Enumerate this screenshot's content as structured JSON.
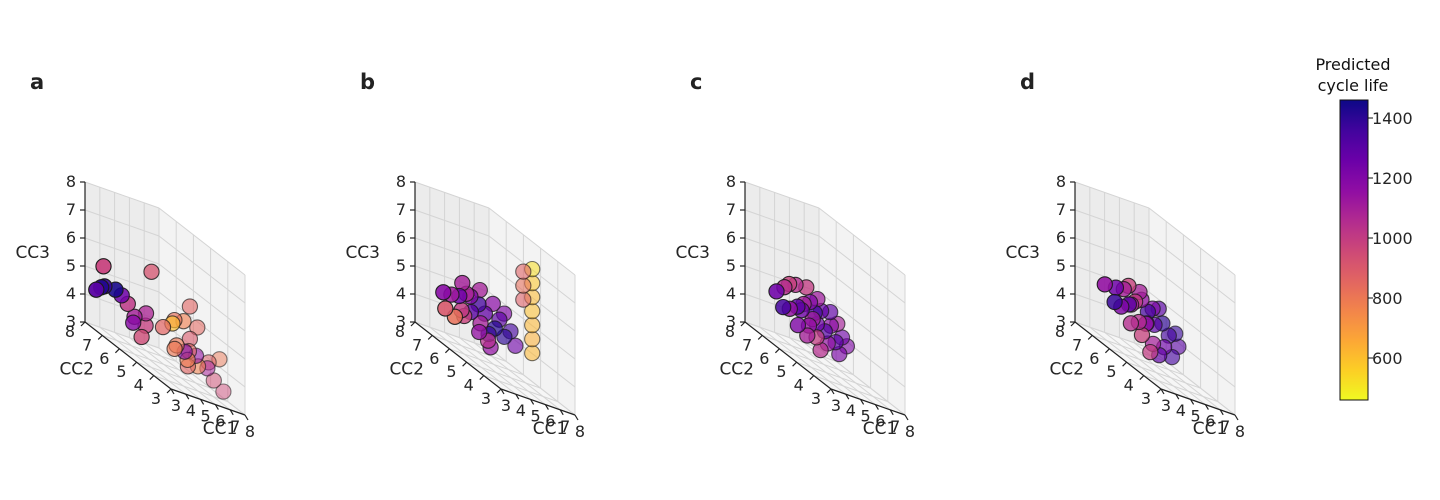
{
  "colormap": "plasma",
  "colors": {
    "pane_left": "#ececec",
    "pane_right": "#f3f3f3",
    "pane_floor": "#f6f6f6",
    "grid": "#d4d4d4",
    "edge": "#1a1a1a"
  },
  "chart_data": [
    {
      "type": "scatter3d",
      "panel": "a",
      "xlabel": "CC1",
      "ylabel": "CC2",
      "zlabel": "CC3",
      "xlim": [
        3,
        8
      ],
      "ylim": [
        3,
        8
      ],
      "zlim": [
        3,
        8
      ],
      "ticks": {
        "x": [
          "3",
          "4",
          "5",
          "6",
          "7",
          "8"
        ],
        "y": [
          "3",
          "4",
          "5",
          "6",
          "7",
          "8"
        ],
        "z": [
          "3",
          "4",
          "5",
          "6",
          "7",
          "8"
        ]
      },
      "grid": true,
      "points": [
        {
          "x": 3.4,
          "y": 7.4,
          "z": 4.6,
          "c": 1420
        },
        {
          "x": 3.5,
          "y": 7.3,
          "z": 4.7,
          "c": 1380
        },
        {
          "x": 3.9,
          "y": 7.0,
          "z": 4.8,
          "c": 1440
        },
        {
          "x": 3.3,
          "y": 7.6,
          "z": 4.4,
          "c": 1300
        },
        {
          "x": 4.2,
          "y": 6.9,
          "z": 4.7,
          "c": 1250
        },
        {
          "x": 3.9,
          "y": 7.7,
          "z": 5.3,
          "c": 980
        },
        {
          "x": 4.5,
          "y": 6.8,
          "z": 4.5,
          "c": 1020
        },
        {
          "x": 4.4,
          "y": 6.4,
          "z": 4.0,
          "c": 1180
        },
        {
          "x": 4.6,
          "y": 6.5,
          "z": 4.2,
          "c": 1100
        },
        {
          "x": 4.5,
          "y": 6.0,
          "z": 3.7,
          "c": 950
        },
        {
          "x": 5.0,
          "y": 6.2,
          "z": 4.1,
          "c": 990
        },
        {
          "x": 4.8,
          "y": 6.0,
          "z": 4.6,
          "c": 1080
        },
        {
          "x": 5.4,
          "y": 6.2,
          "z": 6.1,
          "c": 920
        },
        {
          "x": 5.6,
          "y": 5.7,
          "z": 4.4,
          "c": 860
        },
        {
          "x": 6.0,
          "y": 5.5,
          "z": 4.7,
          "c": 600
        },
        {
          "x": 5.9,
          "y": 5.3,
          "z": 4.9,
          "c": 820
        },
        {
          "x": 6.4,
          "y": 5.2,
          "z": 5.0,
          "c": 780
        },
        {
          "x": 6.6,
          "y": 5.0,
          "z": 4.5,
          "c": 900
        },
        {
          "x": 6.3,
          "y": 4.8,
          "z": 4.1,
          "c": 850
        },
        {
          "x": 6.0,
          "y": 4.6,
          "z": 3.6,
          "c": 860
        },
        {
          "x": 5.8,
          "y": 5.2,
          "z": 3.9,
          "c": 800
        },
        {
          "x": 6.6,
          "y": 5.3,
          "z": 3.9,
          "c": 1200
        },
        {
          "x": 6.9,
          "y": 4.9,
          "z": 4.0,
          "c": 1150
        },
        {
          "x": 6.8,
          "y": 4.7,
          "z": 3.7,
          "c": 770
        },
        {
          "x": 7.2,
          "y": 4.5,
          "z": 3.8,
          "c": 1090
        },
        {
          "x": 7.4,
          "y": 4.6,
          "z": 4.0,
          "c": 880
        },
        {
          "x": 7.4,
          "y": 4.3,
          "z": 3.5,
          "c": 940
        },
        {
          "x": 7.9,
          "y": 4.4,
          "z": 4.3,
          "c": 800
        },
        {
          "x": 7.7,
          "y": 4.0,
          "z": 3.3,
          "c": 960
        },
        {
          "x": 7.1,
          "y": 5.0,
          "z": 5.0,
          "c": 850
        },
        {
          "x": 7.3,
          "y": 5.6,
          "z": 5.5,
          "c": 860
        },
        {
          "x": 6.1,
          "y": 4.7,
          "z": 3.8,
          "c": 780
        },
        {
          "x": 5.7,
          "y": 5.0,
          "z": 4.1,
          "c": 800
        }
      ]
    },
    {
      "type": "scatter3d",
      "panel": "b",
      "xlabel": "CC1",
      "ylabel": "CC2",
      "zlabel": "CC3",
      "xlim": [
        3,
        8
      ],
      "ylim": [
        3,
        8
      ],
      "zlim": [
        3,
        8
      ],
      "ticks": {
        "x": [
          "3",
          "4",
          "5",
          "6",
          "7",
          "8"
        ],
        "y": [
          "3",
          "4",
          "5",
          "6",
          "7",
          "8"
        ],
        "z": [
          "3",
          "4",
          "5",
          "6",
          "7",
          "8"
        ]
      },
      "grid": true,
      "points": [
        {
          "x": 4.1,
          "y": 7.3,
          "z": 4.6,
          "c": 1180
        },
        {
          "x": 4.3,
          "y": 7.0,
          "z": 4.7,
          "c": 1120
        },
        {
          "x": 4.6,
          "y": 6.8,
          "z": 4.8,
          "c": 1250
        },
        {
          "x": 4.4,
          "y": 6.5,
          "z": 4.4,
          "c": 1000
        },
        {
          "x": 4.8,
          "y": 6.3,
          "z": 4.5,
          "c": 1300
        },
        {
          "x": 5.0,
          "y": 6.5,
          "z": 5.0,
          "c": 1200
        },
        {
          "x": 5.2,
          "y": 6.2,
          "z": 4.9,
          "c": 1350
        },
        {
          "x": 5.4,
          "y": 6.0,
          "z": 4.7,
          "c": 1280
        },
        {
          "x": 5.1,
          "y": 6.0,
          "z": 4.3,
          "c": 1100
        },
        {
          "x": 4.9,
          "y": 5.9,
          "z": 4.0,
          "c": 1150
        },
        {
          "x": 5.3,
          "y": 5.7,
          "z": 4.1,
          "c": 1380
        },
        {
          "x": 5.6,
          "y": 5.6,
          "z": 4.4,
          "c": 1420
        },
        {
          "x": 5.8,
          "y": 5.5,
          "z": 4.8,
          "c": 1300
        },
        {
          "x": 6.0,
          "y": 5.4,
          "z": 5.1,
          "c": 1200
        },
        {
          "x": 5.9,
          "y": 5.3,
          "z": 4.3,
          "c": 1400
        },
        {
          "x": 4.0,
          "y": 7.1,
          "z": 4.1,
          "c": 900
        },
        {
          "x": 4.3,
          "y": 6.8,
          "z": 4.0,
          "c": 820
        },
        {
          "x": 4.7,
          "y": 6.6,
          "z": 4.2,
          "c": 980
        },
        {
          "x": 5.5,
          "y": 5.9,
          "z": 3.8,
          "c": 1050
        },
        {
          "x": 5.2,
          "y": 5.5,
          "z": 3.7,
          "c": 1150
        },
        {
          "x": 4.5,
          "y": 6.3,
          "z": 5.1,
          "c": 1080
        },
        {
          "x": 4.8,
          "y": 6.8,
          "z": 5.3,
          "c": 1100
        },
        {
          "x": 5.7,
          "y": 5.8,
          "z": 5.2,
          "c": 1180
        },
        {
          "x": 6.2,
          "y": 5.2,
          "z": 4.6,
          "c": 1350
        },
        {
          "x": 5.4,
          "y": 6.3,
          "z": 5.4,
          "c": 1100
        },
        {
          "x": 6.3,
          "y": 5.0,
          "z": 4.2,
          "c": 1250
        },
        {
          "x": 6.6,
          "y": 4.8,
          "z": 6.0,
          "c": 880
        },
        {
          "x": 6.6,
          "y": 4.8,
          "z": 6.5,
          "c": 830
        },
        {
          "x": 6.6,
          "y": 4.8,
          "z": 7.0,
          "c": 870
        },
        {
          "x": 7.2,
          "y": 4.8,
          "z": 4.2,
          "c": 620
        },
        {
          "x": 7.2,
          "y": 4.8,
          "z": 4.7,
          "c": 640
        },
        {
          "x": 7.2,
          "y": 4.8,
          "z": 5.2,
          "c": 620
        },
        {
          "x": 7.2,
          "y": 4.8,
          "z": 5.7,
          "c": 600
        },
        {
          "x": 7.2,
          "y": 4.8,
          "z": 6.2,
          "c": 610
        },
        {
          "x": 7.2,
          "y": 4.8,
          "z": 6.7,
          "c": 580
        },
        {
          "x": 7.2,
          "y": 4.8,
          "z": 7.2,
          "c": 520
        }
      ]
    },
    {
      "type": "scatter3d",
      "panel": "c",
      "xlabel": "CC1",
      "ylabel": "CC2",
      "zlabel": "CC3",
      "xlim": [
        3,
        8
      ],
      "ylim": [
        3,
        8
      ],
      "zlim": [
        3,
        8
      ],
      "ticks": {
        "x": [
          "3",
          "4",
          "5",
          "6",
          "7",
          "8"
        ],
        "y": [
          "3",
          "4",
          "5",
          "6",
          "7",
          "8"
        ],
        "z": [
          "3",
          "4",
          "5",
          "6",
          "7",
          "8"
        ]
      },
      "grid": true,
      "points": [
        {
          "x": 4.2,
          "y": 7.2,
          "z": 4.7,
          "c": 1250
        },
        {
          "x": 4.5,
          "y": 7.0,
          "z": 5.0,
          "c": 1050
        },
        {
          "x": 4.7,
          "y": 6.9,
          "z": 5.2,
          "c": 980
        },
        {
          "x": 4.4,
          "y": 6.6,
          "z": 4.4,
          "c": 1150
        },
        {
          "x": 4.8,
          "y": 6.5,
          "z": 4.6,
          "c": 1300
        },
        {
          "x": 5.1,
          "y": 6.4,
          "z": 4.8,
          "c": 1100
        },
        {
          "x": 5.3,
          "y": 6.2,
          "z": 5.0,
          "c": 1200
        },
        {
          "x": 5.5,
          "y": 6.1,
          "z": 4.7,
          "c": 1350
        },
        {
          "x": 5.7,
          "y": 5.9,
          "z": 4.9,
          "c": 1280
        },
        {
          "x": 5.0,
          "y": 6.0,
          "z": 4.2,
          "c": 1150
        },
        {
          "x": 5.3,
          "y": 5.8,
          "z": 4.4,
          "c": 1250
        },
        {
          "x": 5.6,
          "y": 5.6,
          "z": 4.3,
          "c": 1320
        },
        {
          "x": 5.9,
          "y": 5.5,
          "z": 4.6,
          "c": 1180
        },
        {
          "x": 6.1,
          "y": 5.3,
          "z": 4.8,
          "c": 1100
        },
        {
          "x": 6.3,
          "y": 5.2,
          "z": 4.4,
          "c": 1250
        },
        {
          "x": 4.6,
          "y": 6.3,
          "z": 4.0,
          "c": 1200
        },
        {
          "x": 5.0,
          "y": 6.1,
          "z": 3.8,
          "c": 1100
        },
        {
          "x": 5.4,
          "y": 5.9,
          "z": 3.9,
          "c": 1000
        },
        {
          "x": 5.8,
          "y": 5.6,
          "z": 3.9,
          "c": 1150
        },
        {
          "x": 6.1,
          "y": 5.4,
          "z": 4.1,
          "c": 1300
        },
        {
          "x": 4.9,
          "y": 6.7,
          "z": 5.3,
          "c": 1050
        },
        {
          "x": 5.4,
          "y": 6.5,
          "z": 5.4,
          "c": 1000
        },
        {
          "x": 5.8,
          "y": 6.2,
          "z": 5.2,
          "c": 1120
        },
        {
          "x": 6.2,
          "y": 5.8,
          "z": 5.0,
          "c": 1280
        },
        {
          "x": 4.3,
          "y": 6.9,
          "z": 4.3,
          "c": 1350
        },
        {
          "x": 5.2,
          "y": 6.6,
          "z": 4.5,
          "c": 1250
        },
        {
          "x": 6.4,
          "y": 5.0,
          "z": 4.2,
          "c": 1200
        },
        {
          "x": 5.6,
          "y": 6.3,
          "z": 4.4,
          "c": 1120
        },
        {
          "x": 5.2,
          "y": 5.5,
          "z": 3.6,
          "c": 1050
        },
        {
          "x": 6.0,
          "y": 5.1,
          "z": 3.8,
          "c": 1220
        }
      ]
    },
    {
      "type": "scatter3d",
      "panel": "d",
      "xlabel": "CC1",
      "ylabel": "CC2",
      "zlabel": "CC3",
      "xlim": [
        3,
        8
      ],
      "ylim": [
        3,
        8
      ],
      "zlim": [
        3,
        8
      ],
      "ticks": {
        "x": [
          "3",
          "4",
          "5",
          "6",
          "7",
          "8"
        ],
        "y": [
          "3",
          "4",
          "5",
          "6",
          "7",
          "8"
        ],
        "z": [
          "3",
          "4",
          "5",
          "6",
          "7",
          "8"
        ]
      },
      "grid": true,
      "points": [
        {
          "x": 4.2,
          "y": 7.3,
          "z": 4.9,
          "c": 1150
        },
        {
          "x": 4.6,
          "y": 7.0,
          "z": 5.0,
          "c": 1250
        },
        {
          "x": 4.9,
          "y": 6.8,
          "z": 5.1,
          "c": 1100
        },
        {
          "x": 4.5,
          "y": 6.6,
          "z": 4.5,
          "c": 1200
        },
        {
          "x": 4.9,
          "y": 6.5,
          "z": 4.7,
          "c": 1300
        },
        {
          "x": 5.2,
          "y": 6.4,
          "z": 4.9,
          "c": 1000
        },
        {
          "x": 5.4,
          "y": 6.2,
          "z": 5.1,
          "c": 1150
        },
        {
          "x": 5.6,
          "y": 6.0,
          "z": 4.8,
          "c": 1350
        },
        {
          "x": 5.8,
          "y": 5.9,
          "z": 5.0,
          "c": 1200
        },
        {
          "x": 5.1,
          "y": 6.1,
          "z": 4.3,
          "c": 1050
        },
        {
          "x": 5.4,
          "y": 5.9,
          "z": 4.4,
          "c": 1200
        },
        {
          "x": 5.7,
          "y": 5.7,
          "z": 4.5,
          "c": 1300
        },
        {
          "x": 6.0,
          "y": 5.5,
          "z": 4.7,
          "c": 1400
        },
        {
          "x": 6.2,
          "y": 5.3,
          "z": 4.4,
          "c": 1350
        },
        {
          "x": 6.4,
          "y": 5.1,
          "z": 4.6,
          "c": 1380
        },
        {
          "x": 4.8,
          "y": 6.3,
          "z": 4.1,
          "c": 1050
        },
        {
          "x": 5.2,
          "y": 6.0,
          "z": 3.9,
          "c": 980
        },
        {
          "x": 5.6,
          "y": 5.7,
          "z": 3.8,
          "c": 1100
        },
        {
          "x": 6.0,
          "y": 5.4,
          "z": 3.9,
          "c": 1250
        },
        {
          "x": 6.3,
          "y": 5.2,
          "z": 3.7,
          "c": 1350
        },
        {
          "x": 5.1,
          "y": 6.7,
          "z": 5.3,
          "c": 980
        },
        {
          "x": 5.5,
          "y": 6.4,
          "z": 5.3,
          "c": 1100
        },
        {
          "x": 6.1,
          "y": 5.8,
          "z": 5.1,
          "c": 1300
        },
        {
          "x": 4.4,
          "y": 6.9,
          "z": 4.5,
          "c": 1380
        },
        {
          "x": 5.7,
          "y": 6.2,
          "z": 4.3,
          "c": 1150
        },
        {
          "x": 5.3,
          "y": 5.6,
          "z": 3.5,
          "c": 1000
        },
        {
          "x": 6.5,
          "y": 5.0,
          "z": 4.2,
          "c": 1300
        },
        {
          "x": 5.9,
          "y": 5.6,
          "z": 3.5,
          "c": 1280
        },
        {
          "x": 4.7,
          "y": 6.2,
          "z": 4.8,
          "c": 1120
        }
      ]
    }
  ],
  "colorbar": {
    "title_line1": "Predicted",
    "title_line2": "cycle life",
    "min": 460,
    "max": 1460,
    "ticks": [
      600,
      800,
      1000,
      1200,
      1400
    ]
  }
}
